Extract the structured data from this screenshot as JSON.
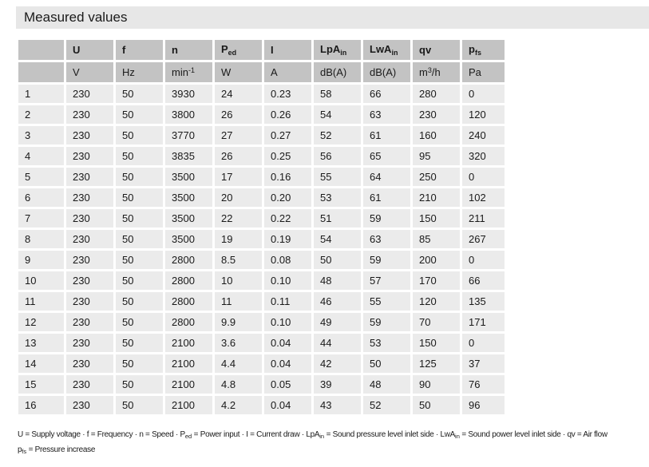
{
  "title": "Measured values",
  "colors": {
    "title_bar_bg": "#e7e7e7",
    "header_cell_bg": "#c3c3c3",
    "data_cell_bg": "#ebebeb",
    "text": "#1a1a1a"
  },
  "table": {
    "columns": [
      {
        "name": "row-number",
        "symbol": "",
        "sub": "",
        "unit": [
          {
            "t": ""
          }
        ]
      },
      {
        "name": "supply-voltage",
        "symbol": "U",
        "sub": "",
        "unit": [
          {
            "t": "V"
          }
        ]
      },
      {
        "name": "frequency",
        "symbol": "f",
        "sub": "",
        "unit": [
          {
            "t": "Hz"
          }
        ]
      },
      {
        "name": "speed",
        "symbol": "n",
        "sub": "",
        "unit": [
          {
            "t": "min"
          },
          {
            "sup": "-1"
          }
        ]
      },
      {
        "name": "power-input",
        "symbol": "P",
        "sub": "ed",
        "unit": [
          {
            "t": "W"
          }
        ]
      },
      {
        "name": "current-draw",
        "symbol": "I",
        "sub": "",
        "unit": [
          {
            "t": "A"
          }
        ]
      },
      {
        "name": "sound-pressure-level-inlet",
        "symbol": "LpA",
        "sub": "in",
        "unit": [
          {
            "t": "dB(A)"
          }
        ]
      },
      {
        "name": "sound-power-level-inlet",
        "symbol": "LwA",
        "sub": "in",
        "unit": [
          {
            "t": "dB(A)"
          }
        ]
      },
      {
        "name": "air-flow",
        "symbol": "qv",
        "sub": "",
        "unit": [
          {
            "t": "m"
          },
          {
            "sup": "3"
          },
          {
            "t": "/h"
          }
        ]
      },
      {
        "name": "pressure-increase",
        "symbol": "p",
        "sub": "fs",
        "unit": [
          {
            "t": "Pa"
          }
        ]
      }
    ],
    "rows": [
      [
        "1",
        "230",
        "50",
        "3930",
        "24",
        "0.23",
        "58",
        "66",
        "280",
        "0"
      ],
      [
        "2",
        "230",
        "50",
        "3800",
        "26",
        "0.26",
        "54",
        "63",
        "230",
        "120"
      ],
      [
        "3",
        "230",
        "50",
        "3770",
        "27",
        "0.27",
        "52",
        "61",
        "160",
        "240"
      ],
      [
        "4",
        "230",
        "50",
        "3835",
        "26",
        "0.25",
        "56",
        "65",
        "95",
        "320"
      ],
      [
        "5",
        "230",
        "50",
        "3500",
        "17",
        "0.16",
        "55",
        "64",
        "250",
        "0"
      ],
      [
        "6",
        "230",
        "50",
        "3500",
        "20",
        "0.20",
        "53",
        "61",
        "210",
        "102"
      ],
      [
        "7",
        "230",
        "50",
        "3500",
        "22",
        "0.22",
        "51",
        "59",
        "150",
        "211"
      ],
      [
        "8",
        "230",
        "50",
        "3500",
        "19",
        "0.19",
        "54",
        "63",
        "85",
        "267"
      ],
      [
        "9",
        "230",
        "50",
        "2800",
        "8.5",
        "0.08",
        "50",
        "59",
        "200",
        "0"
      ],
      [
        "10",
        "230",
        "50",
        "2800",
        "10",
        "0.10",
        "48",
        "57",
        "170",
        "66"
      ],
      [
        "11",
        "230",
        "50",
        "2800",
        "11",
        "0.11",
        "46",
        "55",
        "120",
        "135"
      ],
      [
        "12",
        "230",
        "50",
        "2800",
        "9.9",
        "0.10",
        "49",
        "59",
        "70",
        "171"
      ],
      [
        "13",
        "230",
        "50",
        "2100",
        "3.6",
        "0.04",
        "44",
        "53",
        "150",
        "0"
      ],
      [
        "14",
        "230",
        "50",
        "2100",
        "4.4",
        "0.04",
        "42",
        "50",
        "125",
        "37"
      ],
      [
        "15",
        "230",
        "50",
        "2100",
        "4.8",
        "0.05",
        "39",
        "48",
        "90",
        "76"
      ],
      [
        "16",
        "230",
        "50",
        "2100",
        "4.2",
        "0.04",
        "43",
        "52",
        "50",
        "96"
      ]
    ]
  },
  "footnote": {
    "line1": [
      {
        "t": "U = Supply voltage · f = Frequency · n = Speed · P"
      },
      {
        "sub": "ed"
      },
      {
        "t": " = Power input · I = Current draw · LpA"
      },
      {
        "sub": "in"
      },
      {
        "t": " = Sound pressure level inlet side · LwA"
      },
      {
        "sub": "in"
      },
      {
        "t": " = Sound power level inlet side · qv = Air flow"
      }
    ],
    "line2": [
      {
        "t": "p"
      },
      {
        "sub": "fs"
      },
      {
        "t": " = Pressure increase"
      }
    ]
  }
}
